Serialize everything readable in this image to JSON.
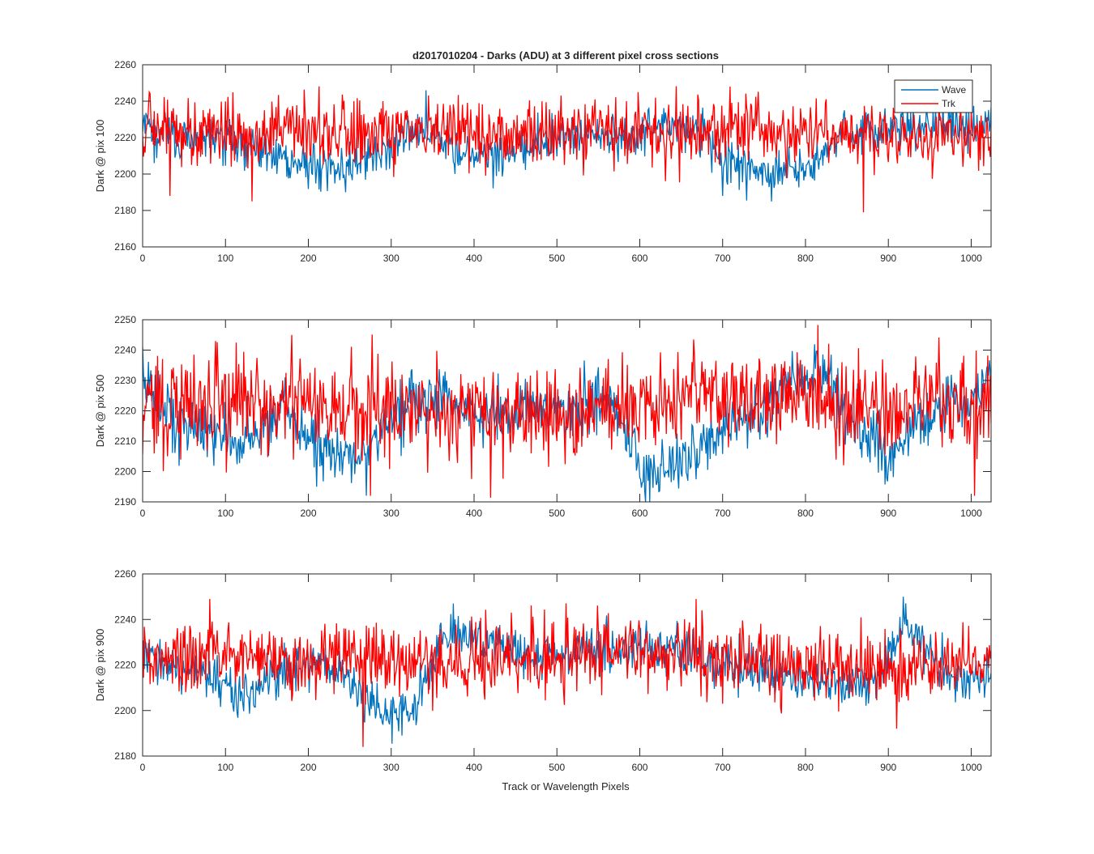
{
  "figure": {
    "title": "d2017010204 - Darks (ADU) at 3 different pixel cross sections",
    "xlabel": "Track or Wavelength Pixels"
  },
  "legend": {
    "entries": [
      {
        "label": "Wave",
        "color": "#0072BD"
      },
      {
        "label": "Trk",
        "color": "#FF0000"
      }
    ],
    "location": "top-right of first subplot"
  },
  "chart_data": [
    {
      "type": "line",
      "title": "d2017010204 - Darks (ADU) at 3 different pixel cross sections",
      "xlabel": "",
      "ylabel": "Dark @ pix 100",
      "xlim": [
        0,
        1024
      ],
      "ylim": [
        2160,
        2260
      ],
      "xticks": [
        "0",
        "100",
        "200",
        "300",
        "400",
        "500",
        "600",
        "700",
        "800",
        "900",
        "1000"
      ],
      "yticks": [
        "2160",
        "2180",
        "2200",
        "2220",
        "2240",
        "2260"
      ],
      "grid": false,
      "legend": "top-right",
      "series": [
        {
          "name": "Wave",
          "color": "#0072BD",
          "noise": 6,
          "base": [
            [
              0,
              2226
            ],
            [
              20,
              2222
            ],
            [
              60,
              2220
            ],
            [
              100,
              2218
            ],
            [
              150,
              2212
            ],
            [
              200,
              2205
            ],
            [
              230,
              2204
            ],
            [
              260,
              2207
            ],
            [
              290,
              2212
            ],
            [
              320,
              2224
            ],
            [
              340,
              2222
            ],
            [
              380,
              2214
            ],
            [
              400,
              2212
            ],
            [
              430,
              2210
            ],
            [
              460,
              2216
            ],
            [
              500,
              2220
            ],
            [
              560,
              2220
            ],
            [
              600,
              2222
            ],
            [
              650,
              2226
            ],
            [
              680,
              2224
            ],
            [
              700,
              2206
            ],
            [
              730,
              2204
            ],
            [
              760,
              2200
            ],
            [
              780,
              2203
            ],
            [
              800,
              2204
            ],
            [
              820,
              2210
            ],
            [
              840,
              2220
            ],
            [
              870,
              2222
            ],
            [
              900,
              2226
            ],
            [
              950,
              2224
            ],
            [
              1000,
              2226
            ],
            [
              1024,
              2230
            ]
          ],
          "spikes": [
            [
              342,
              2246
            ],
            [
              700,
              2188
            ],
            [
              14,
              2206
            ]
          ]
        },
        {
          "name": "Trk",
          "color": "#FF0000",
          "noise": 9,
          "base": [
            [
              0,
              2224
            ],
            [
              100,
              2223
            ],
            [
              200,
              2223
            ],
            [
              300,
              2222
            ],
            [
              400,
              2222
            ],
            [
              500,
              2222
            ],
            [
              600,
              2223
            ],
            [
              700,
              2224
            ],
            [
              800,
              2222
            ],
            [
              900,
              2220
            ],
            [
              1000,
              2220
            ],
            [
              1024,
              2218
            ]
          ],
          "spikes": [
            [
              33,
              2188
            ],
            [
              132,
              2185
            ],
            [
              870,
              2179
            ],
            [
              8,
              2245
            ],
            [
              709,
              2248
            ]
          ]
        }
      ]
    },
    {
      "type": "line",
      "xlabel": "",
      "ylabel": "Dark @ pix 500",
      "xlim": [
        0,
        1024
      ],
      "ylim": [
        2190,
        2250
      ],
      "xticks": [
        "0",
        "100",
        "200",
        "300",
        "400",
        "500",
        "600",
        "700",
        "800",
        "900",
        "1000"
      ],
      "yticks": [
        "2190",
        "2200",
        "2210",
        "2220",
        "2230",
        "2240",
        "2250"
      ],
      "grid": false,
      "series": [
        {
          "name": "Wave",
          "color": "#0072BD",
          "noise": 5,
          "base": [
            [
              0,
              2228
            ],
            [
              30,
              2220
            ],
            [
              60,
              2214
            ],
            [
              100,
              2212
            ],
            [
              130,
              2210
            ],
            [
              170,
              2222
            ],
            [
              200,
              2210
            ],
            [
              230,
              2206
            ],
            [
              270,
              2206
            ],
            [
              300,
              2218
            ],
            [
              330,
              2224
            ],
            [
              360,
              2226
            ],
            [
              400,
              2220
            ],
            [
              450,
              2220
            ],
            [
              500,
              2222
            ],
            [
              560,
              2222
            ],
            [
              590,
              2210
            ],
            [
              610,
              2198
            ],
            [
              640,
              2202
            ],
            [
              680,
              2210
            ],
            [
              720,
              2218
            ],
            [
              760,
              2222
            ],
            [
              780,
              2230
            ],
            [
              820,
              2232
            ],
            [
              850,
              2220
            ],
            [
              880,
              2208
            ],
            [
              900,
              2206
            ],
            [
              930,
              2214
            ],
            [
              970,
              2220
            ],
            [
              1000,
              2224
            ],
            [
              1024,
              2230
            ]
          ],
          "spikes": [
            [
              612,
              2190
            ],
            [
              210,
              2195
            ]
          ]
        },
        {
          "name": "Trk",
          "color": "#FF0000",
          "noise": 8,
          "base": [
            [
              0,
              2222
            ],
            [
              100,
              2224
            ],
            [
              200,
              2220
            ],
            [
              300,
              2220
            ],
            [
              400,
              2222
            ],
            [
              500,
              2220
            ],
            [
              600,
              2222
            ],
            [
              700,
              2226
            ],
            [
              800,
              2224
            ],
            [
              900,
              2220
            ],
            [
              1000,
              2222
            ],
            [
              1024,
              2222
            ]
          ],
          "spikes": [
            [
              180,
              2245
            ],
            [
              275,
              2192
            ],
            [
              1004,
              2192
            ],
            [
              88,
              2243
            ]
          ]
        }
      ]
    },
    {
      "type": "line",
      "xlabel": "Track or Wavelength Pixels",
      "ylabel": "Dark @ pix 900",
      "xlim": [
        0,
        1024
      ],
      "ylim": [
        2180,
        2260
      ],
      "xticks": [
        "0",
        "100",
        "200",
        "300",
        "400",
        "500",
        "600",
        "700",
        "800",
        "900",
        "1000"
      ],
      "yticks": [
        "2180",
        "2200",
        "2220",
        "2240",
        "2260"
      ],
      "grid": false,
      "series": [
        {
          "name": "Wave",
          "color": "#0072BD",
          "noise": 5,
          "base": [
            [
              0,
              2224
            ],
            [
              50,
              2220
            ],
            [
              100,
              2210
            ],
            [
              130,
              2206
            ],
            [
              170,
              2218
            ],
            [
              200,
              2222
            ],
            [
              240,
              2216
            ],
            [
              270,
              2204
            ],
            [
              300,
              2196
            ],
            [
              330,
              2204
            ],
            [
              360,
              2228
            ],
            [
              380,
              2234
            ],
            [
              420,
              2228
            ],
            [
              480,
              2224
            ],
            [
              550,
              2226
            ],
            [
              600,
              2228
            ],
            [
              650,
              2226
            ],
            [
              700,
              2222
            ],
            [
              750,
              2216
            ],
            [
              800,
              2214
            ],
            [
              850,
              2212
            ],
            [
              880,
              2212
            ],
            [
              900,
              2226
            ],
            [
              920,
              2240
            ],
            [
              940,
              2232
            ],
            [
              960,
              2218
            ],
            [
              990,
              2212
            ],
            [
              1024,
              2214
            ]
          ],
          "spikes": [
            [
              918,
              2250
            ],
            [
              375,
              2247
            ],
            [
              313,
              2189
            ]
          ]
        },
        {
          "name": "Trk",
          "color": "#FF0000",
          "noise": 8,
          "base": [
            [
              0,
              2222
            ],
            [
              100,
              2224
            ],
            [
              200,
              2222
            ],
            [
              300,
              2222
            ],
            [
              400,
              2222
            ],
            [
              500,
              2224
            ],
            [
              600,
              2226
            ],
            [
              700,
              2224
            ],
            [
              800,
              2220
            ],
            [
              900,
              2218
            ],
            [
              1000,
              2220
            ],
            [
              1024,
              2222
            ]
          ],
          "spikes": [
            [
              266,
              2184
            ],
            [
              81,
              2249
            ],
            [
              668,
              2249
            ],
            [
              910,
              2192
            ]
          ]
        }
      ]
    }
  ]
}
